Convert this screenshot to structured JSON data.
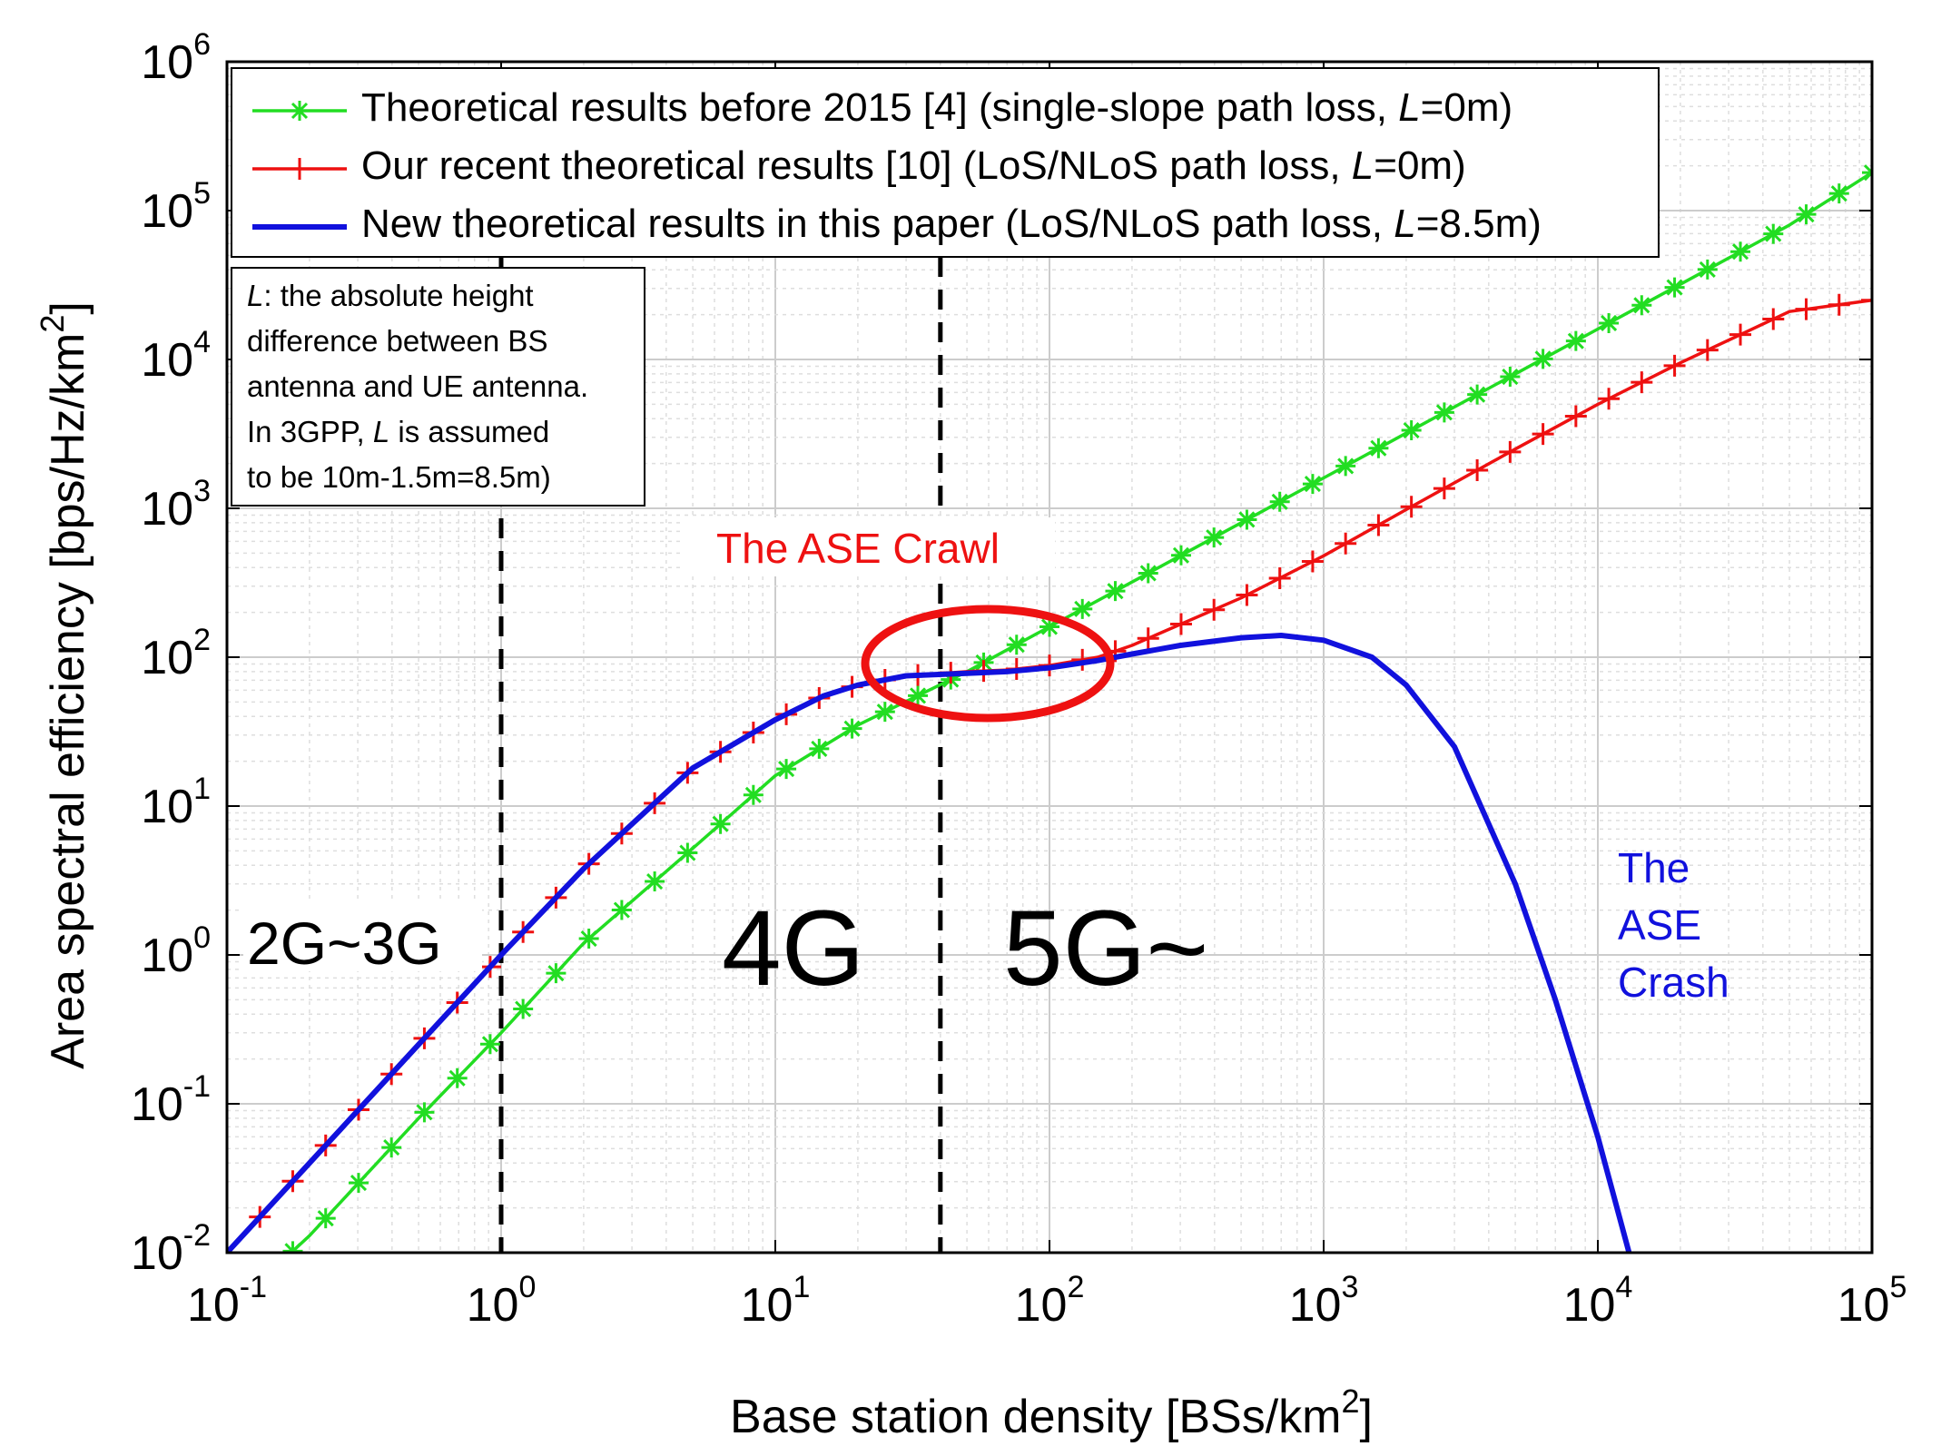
{
  "chart_data": {
    "type": "line",
    "xscale": "log",
    "yscale": "log",
    "xlim": [
      0.1,
      100000
    ],
    "ylim": [
      0.01,
      1000000
    ],
    "grid": true,
    "xlabel_text": "Base station density [BSs/km",
    "xlabel_sup": "2",
    "xlabel_end": "]",
    "ylabel_text": "Area spectral efficiency [bps/Hz/km",
    "ylabel_sup": "2",
    "ylabel_end": "]",
    "x_ticks": [
      {
        "base": "10",
        "exp": "-1",
        "value": 0.1
      },
      {
        "base": "10",
        "exp": "0",
        "value": 1
      },
      {
        "base": "10",
        "exp": "1",
        "value": 10
      },
      {
        "base": "10",
        "exp": "2",
        "value": 100
      },
      {
        "base": "10",
        "exp": "3",
        "value": 1000
      },
      {
        "base": "10",
        "exp": "4",
        "value": 10000
      },
      {
        "base": "10",
        "exp": "5",
        "value": 100000
      }
    ],
    "y_ticks": [
      {
        "base": "10",
        "exp": "-2",
        "value": 0.01
      },
      {
        "base": "10",
        "exp": "-1",
        "value": 0.1
      },
      {
        "base": "10",
        "exp": "0",
        "value": 1
      },
      {
        "base": "10",
        "exp": "1",
        "value": 10
      },
      {
        "base": "10",
        "exp": "2",
        "value": 100
      },
      {
        "base": "10",
        "exp": "3",
        "value": 1000
      },
      {
        "base": "10",
        "exp": "4",
        "value": 10000
      },
      {
        "base": "10",
        "exp": "5",
        "value": 100000
      },
      {
        "base": "10",
        "exp": "6",
        "value": 1000000
      }
    ],
    "legend_position": "top",
    "series": [
      {
        "name_prefix": "Theoretical results before 2015 [4] (single-slope path loss, ",
        "name_italic": "L",
        "name_suffix": "=0m)",
        "color": "#22dd22",
        "marker": "asterisk",
        "x": [
          0.1,
          0.2,
          0.5,
          1,
          2,
          5,
          10,
          20,
          50,
          100,
          200,
          500,
          1000,
          2000,
          5000,
          10000,
          20000,
          50000,
          100000
        ],
        "y": [
          0.004,
          0.013,
          0.08,
          0.3,
          1.2,
          5.2,
          16,
          35,
          80,
          160,
          320,
          800,
          1600,
          3200,
          8000,
          16000,
          32000,
          80000,
          180000
        ]
      },
      {
        "name_prefix": "Our recent theoretical results [10] (LoS/NLoS path loss, ",
        "name_italic": "L",
        "name_suffix": "=0m)",
        "color": "#ee1111",
        "marker": "plus",
        "x": [
          0.1,
          0.2,
          0.5,
          1,
          2,
          5,
          10,
          15,
          20,
          30,
          50,
          70,
          100,
          150,
          200,
          500,
          1000,
          2000,
          5000,
          10000,
          20000,
          50000,
          100000
        ],
        "y": [
          0.01,
          0.04,
          0.25,
          1.0,
          3.8,
          18,
          38,
          55,
          65,
          75,
          80,
          82,
          88,
          100,
          120,
          250,
          480,
          980,
          2500,
          5000,
          9500,
          21000,
          25000
        ]
      },
      {
        "name_prefix": "New theoretical results in this paper (LoS/NLoS path loss, ",
        "name_italic": "L",
        "name_suffix": "=8.5m)",
        "color": "#1111dd",
        "marker": "none",
        "x": [
          0.1,
          0.2,
          0.5,
          1,
          2,
          5,
          10,
          15,
          20,
          30,
          50,
          70,
          100,
          150,
          200,
          300,
          500,
          700,
          1000,
          1500,
          2000,
          3000,
          5000,
          7000,
          10000,
          13000
        ],
        "y": [
          0.01,
          0.04,
          0.25,
          1.0,
          3.8,
          18,
          38,
          55,
          65,
          75,
          78,
          80,
          85,
          95,
          105,
          120,
          135,
          140,
          130,
          100,
          65,
          25,
          3,
          0.5,
          0.06,
          0.01
        ]
      }
    ],
    "vlines": [
      1,
      40
    ],
    "note": {
      "line1_italic": "L",
      "line1_rest": ": the absolute height",
      "line2": "difference between BS",
      "line3": "antenna and UE antenna.",
      "line4_prefix": "In 3GPP, ",
      "line4_italic": "L",
      "line4_suffix": " is assumed",
      "line5": "to be 10m-1.5m=8.5m)"
    },
    "annotations": {
      "crawl": "The ASE Crawl",
      "crash1": "The",
      "crash2": "ASE",
      "crash3": "Crash",
      "gen_2g3g": "2G~3G",
      "gen_4g": "4G",
      "gen_5g": "5G~"
    },
    "colors": {
      "crawl": "#ee1111",
      "crash": "#1111dd"
    }
  }
}
